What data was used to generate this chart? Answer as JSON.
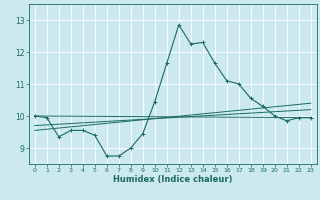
{
  "title": "",
  "xlabel": "Humidex (Indice chaleur)",
  "bg_color": "#cce9f0",
  "line_color": "#1a6b62",
  "grid_color": "#ffffff",
  "xlim": [
    -0.5,
    23.5
  ],
  "ylim": [
    8.5,
    13.5
  ],
  "yticks": [
    9,
    10,
    11,
    12,
    13
  ],
  "xticks": [
    0,
    1,
    2,
    3,
    4,
    5,
    6,
    7,
    8,
    9,
    10,
    11,
    12,
    13,
    14,
    15,
    16,
    17,
    18,
    19,
    20,
    21,
    22,
    23
  ],
  "series": [
    [
      0,
      10.0
    ],
    [
      1,
      9.95
    ],
    [
      2,
      9.35
    ],
    [
      3,
      9.55
    ],
    [
      4,
      9.55
    ],
    [
      5,
      9.4
    ],
    [
      6,
      8.75
    ],
    [
      7,
      8.75
    ],
    [
      8,
      9.0
    ],
    [
      9,
      9.45
    ],
    [
      10,
      10.45
    ],
    [
      11,
      11.65
    ],
    [
      12,
      12.85
    ],
    [
      13,
      12.25
    ],
    [
      14,
      12.3
    ],
    [
      15,
      11.65
    ],
    [
      16,
      11.1
    ],
    [
      17,
      11.0
    ],
    [
      18,
      10.55
    ],
    [
      19,
      10.3
    ],
    [
      20,
      10.0
    ],
    [
      21,
      9.85
    ],
    [
      22,
      9.95
    ],
    [
      23,
      9.95
    ]
  ],
  "line1": [
    [
      0,
      10.0
    ],
    [
      23,
      9.95
    ]
  ],
  "line2": [
    [
      0,
      9.7
    ],
    [
      23,
      10.2
    ]
  ],
  "line3": [
    [
      0,
      9.55
    ],
    [
      23,
      10.4
    ]
  ]
}
